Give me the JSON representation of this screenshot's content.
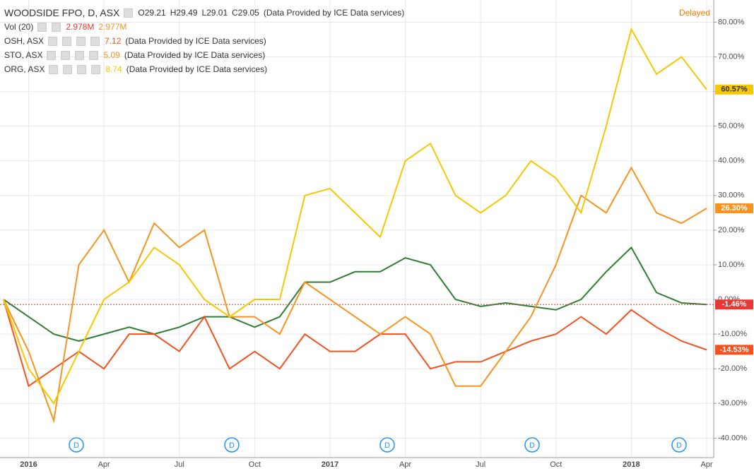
{
  "chart_data": {
    "type": "line",
    "header": {
      "ohlc": [
        "O29.21",
        "H29.49",
        "L29.01",
        "C29.05"
      ],
      "source": "(Data Provided by ICE Data services)",
      "status": "Delayed",
      "volume": {
        "name": "Vol (20)",
        "values": [
          "2.978M",
          "2.977M"
        ]
      }
    },
    "categories": [
      null,
      "2016",
      null,
      null,
      "Apr",
      null,
      null,
      "Jul",
      null,
      null,
      "Oct",
      null,
      null,
      "2017",
      null,
      null,
      "Apr",
      null,
      null,
      "Jul",
      null,
      null,
      "Oct",
      null,
      null,
      "2018",
      null,
      null,
      "Apr"
    ],
    "series": [
      {
        "name": "WOODSIDE FPO, D, ASX",
        "color": "#2e7d32",
        "values": [
          0,
          -5,
          -10,
          -12,
          -10,
          -8,
          -10,
          -8,
          -5,
          -5,
          -8,
          -5,
          5,
          5,
          8,
          8,
          12,
          10,
          0,
          -2,
          -1,
          -2,
          -3,
          0,
          8,
          15,
          2,
          -1,
          -1.46
        ],
        "last_label": "-1.46%"
      },
      {
        "name": "OSH, ASX",
        "legend_value": "7.12",
        "color": "#f4511e",
        "values": [
          0,
          -25,
          -20,
          -15,
          -20,
          -10,
          -10,
          -15,
          -5,
          -20,
          -15,
          -20,
          -10,
          -15,
          -15,
          -10,
          -10,
          -20,
          -18,
          -18,
          -15,
          -12,
          -10,
          -5,
          -10,
          -3,
          -8,
          -12,
          -14.53
        ],
        "last_label": "-14.53%"
      },
      {
        "name": "STO, ASX",
        "legend_value": "5.09",
        "color": "#f7931e",
        "values": [
          0,
          -15,
          -35,
          10,
          20,
          5,
          22,
          15,
          20,
          -5,
          -5,
          -10,
          5,
          0,
          -5,
          -10,
          -5,
          -10,
          -25,
          -25,
          -15,
          -5,
          10,
          30,
          25,
          38,
          25,
          22,
          26.3
        ],
        "last_label": "26.30%"
      },
      {
        "name": "ORG, ASX",
        "legend_value": "8.74",
        "color": "#f5c800",
        "values": [
          0,
          -20,
          -30,
          -15,
          0,
          5,
          15,
          10,
          0,
          -5,
          0,
          0,
          30,
          32,
          25,
          18,
          40,
          45,
          30,
          25,
          30,
          40,
          35,
          25,
          50,
          78,
          65,
          70,
          60.57
        ],
        "last_label": "60.57%"
      }
    ],
    "events": [
      "D",
      "D",
      "D",
      "D",
      "D"
    ],
    "ylim": [
      -44,
      86
    ],
    "yticks": [
      {
        "value": 80,
        "label": "80.00%"
      },
      {
        "value": 70,
        "label": "70.00%"
      },
      {
        "value": 60,
        "label": "60.00%"
      },
      {
        "value": 50,
        "label": "50.00%"
      },
      {
        "value": 40,
        "label": "40.00%"
      },
      {
        "value": 30,
        "label": "30.00%"
      },
      {
        "value": 20,
        "label": "20.00%"
      },
      {
        "value": 10,
        "label": "10.00%"
      },
      {
        "value": 0,
        "label": "0.00%"
      },
      {
        "value": -10,
        "label": "-10.00%"
      },
      {
        "value": -20,
        "label": "-20.00%"
      },
      {
        "value": -30,
        "label": "-30.00%"
      },
      {
        "value": -40,
        "label": "-40.00%"
      }
    ],
    "grid": true
  }
}
